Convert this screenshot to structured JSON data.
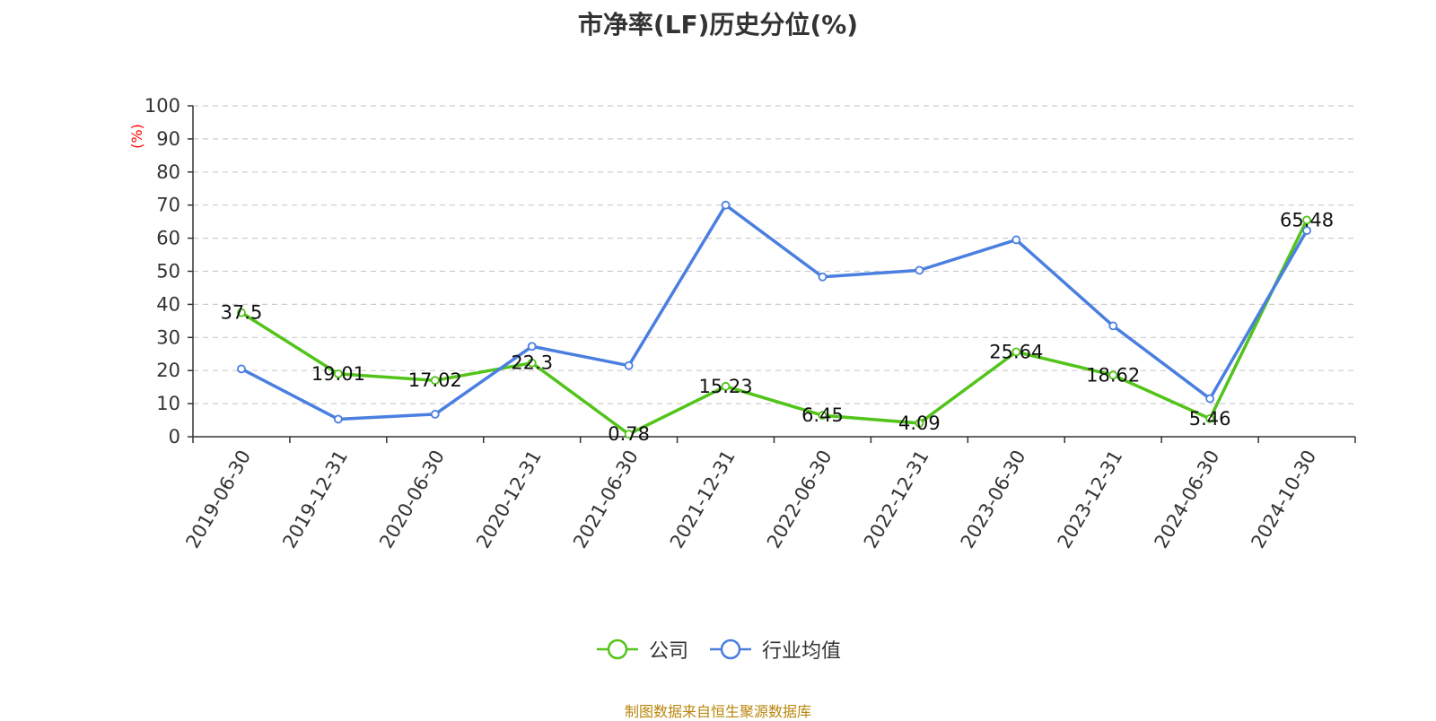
{
  "chart_data": {
    "type": "line",
    "title": "市净率(LF)历史分位(%)",
    "ylabel": "(%)",
    "xlabel": "",
    "ylim": [
      0,
      100
    ],
    "yticks": [
      0,
      10,
      20,
      30,
      40,
      50,
      60,
      70,
      80,
      90,
      100
    ],
    "grid": true,
    "categories": [
      "2019-06-30",
      "2019-12-31",
      "2020-06-30",
      "2020-12-31",
      "2021-06-30",
      "2021-12-31",
      "2022-06-30",
      "2022-12-31",
      "2023-06-30",
      "2023-12-31",
      "2024-06-30",
      "2024-10-30"
    ],
    "series": [
      {
        "name": "公司",
        "color": "#52c41a",
        "values": [
          37.5,
          19.01,
          17.02,
          22.3,
          0.78,
          15.23,
          6.45,
          4.09,
          25.64,
          18.62,
          5.46,
          65.48
        ],
        "labels": [
          "37.5",
          "19.01",
          "17.02",
          "22.3",
          "0.78",
          "15.23",
          "6.45",
          "4.09",
          "25.64",
          "18.62",
          "5.46",
          "65.48"
        ],
        "show_labels": true
      },
      {
        "name": "行业均值",
        "color": "#4a7fe0",
        "values": [
          20.5,
          5.3,
          6.8,
          27.3,
          21.5,
          70,
          48.3,
          50.3,
          59.5,
          33.5,
          11.5,
          62.3
        ],
        "show_labels": false
      }
    ],
    "legend_position": "bottom-center",
    "source_note": "制图数据来自恒生聚源数据库"
  }
}
